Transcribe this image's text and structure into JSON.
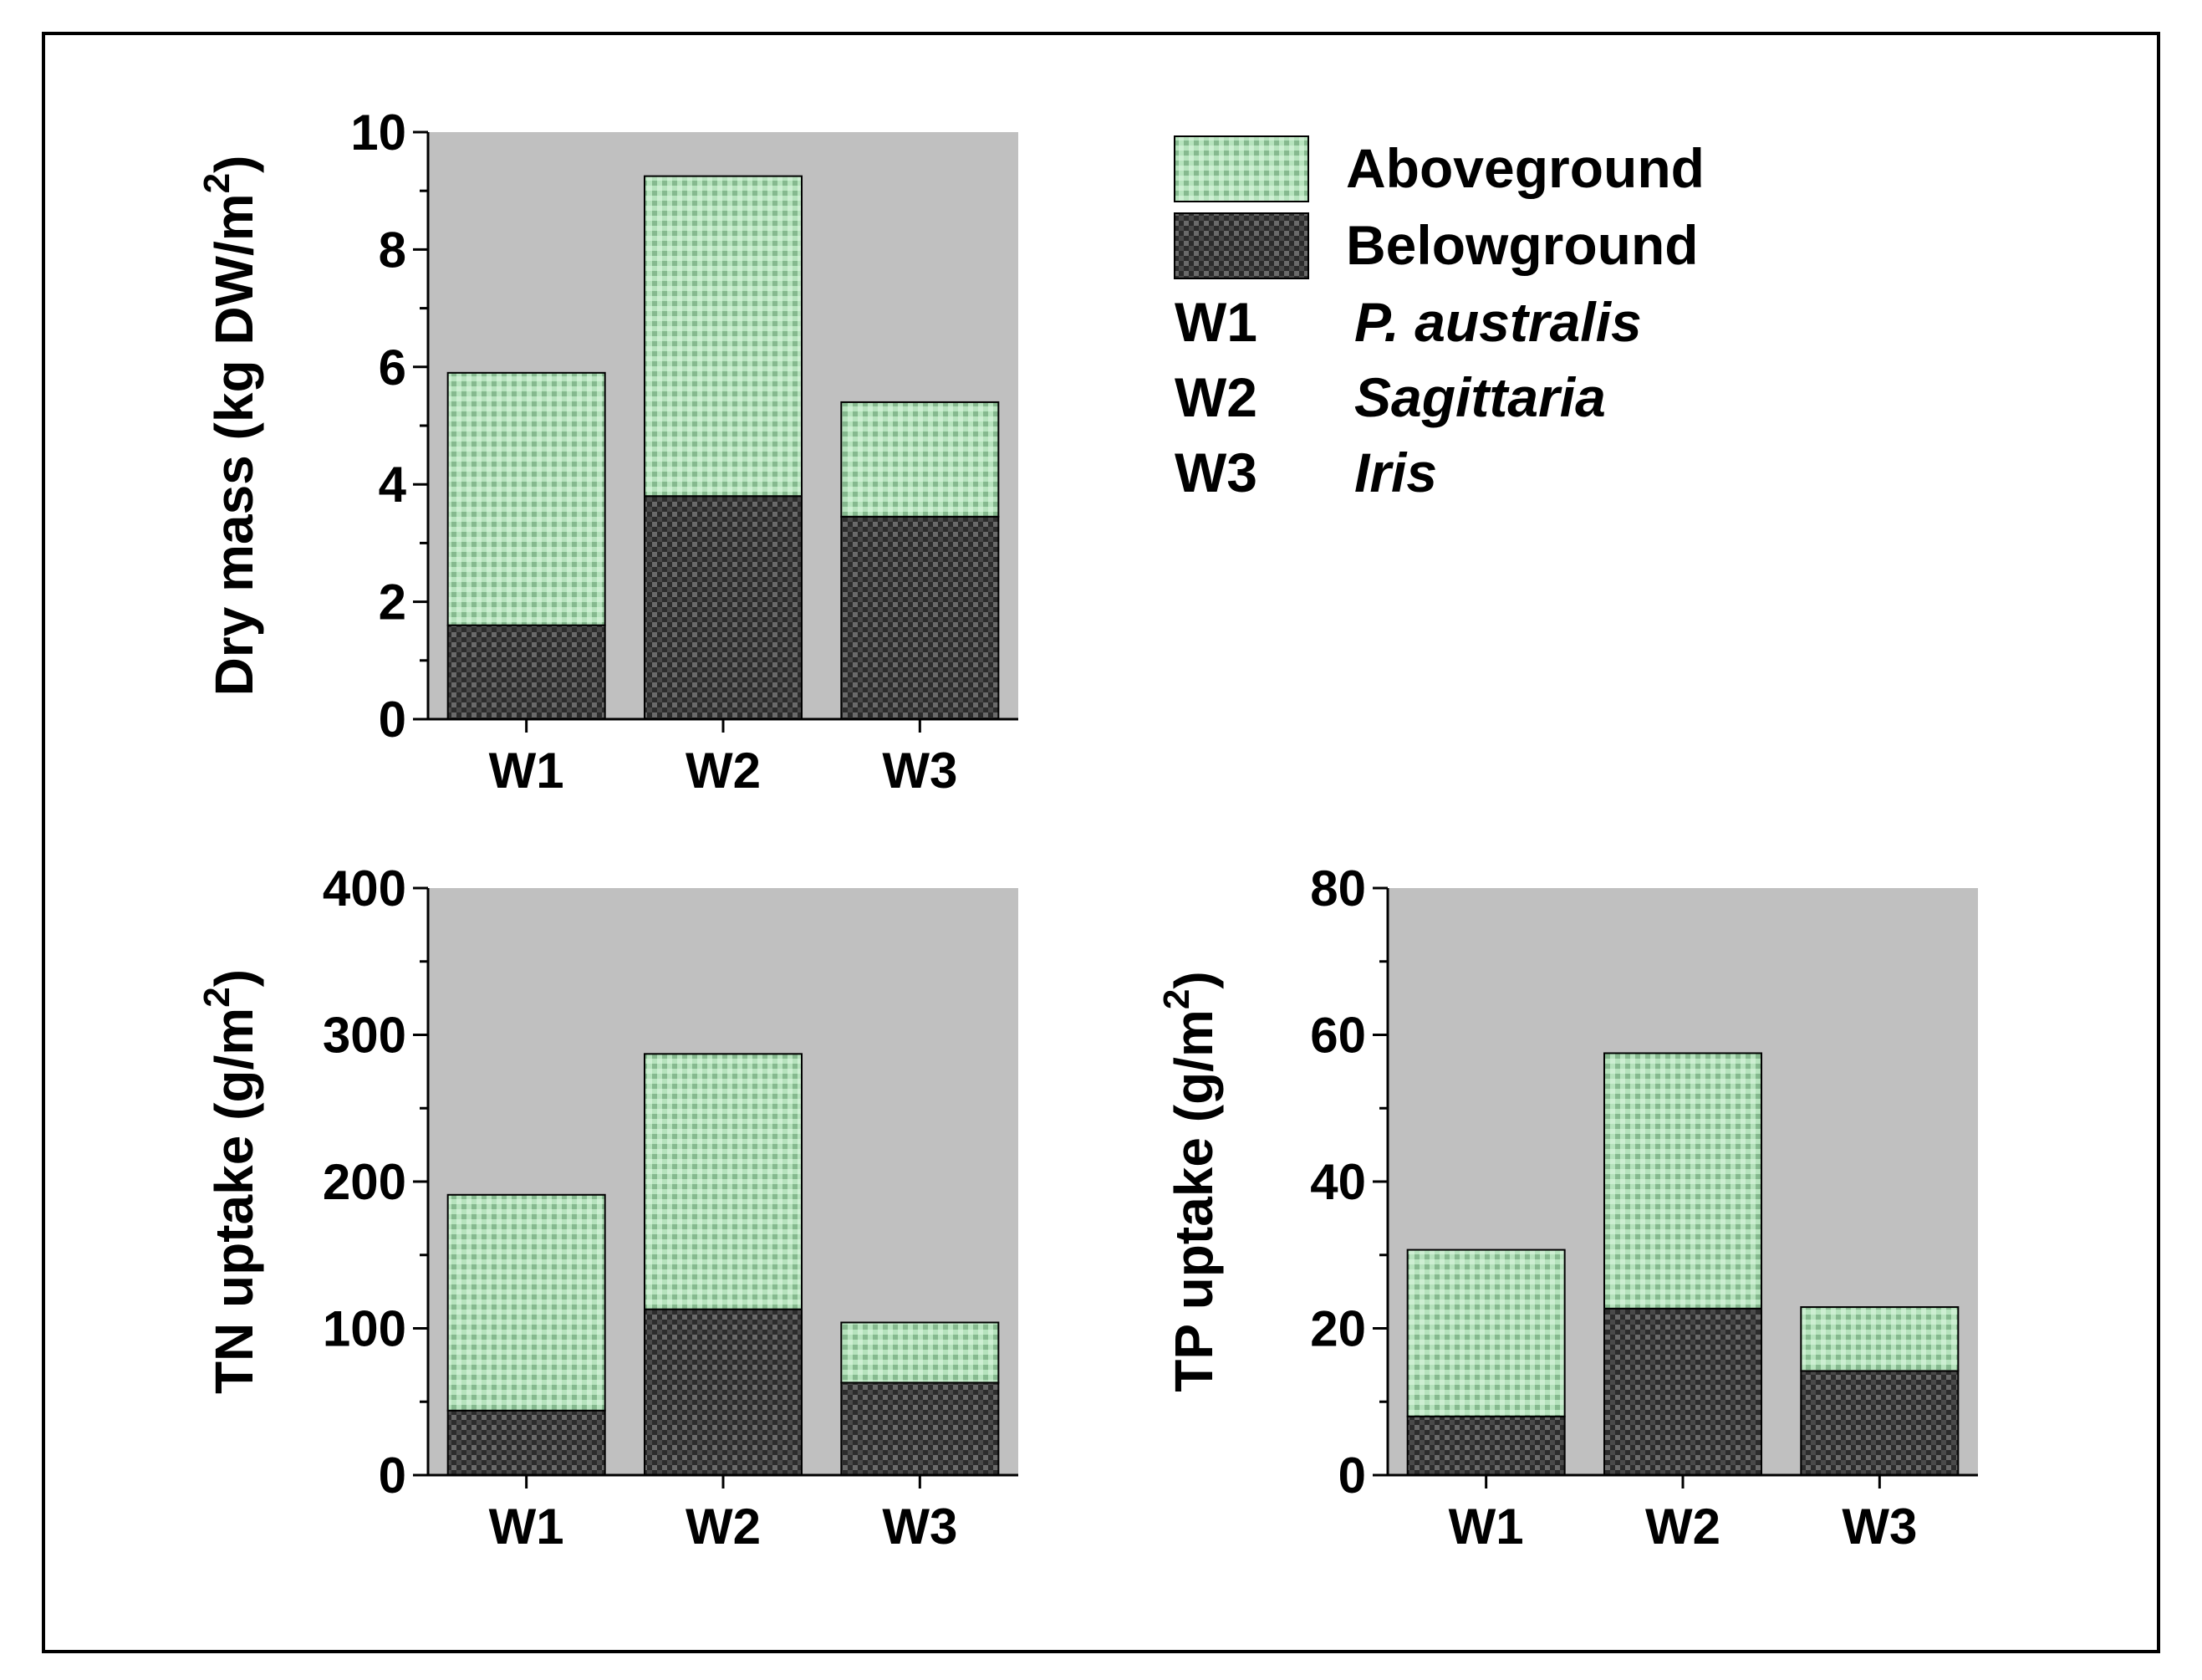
{
  "colors": {
    "plot_background": "#c0c0c0",
    "aboveground": "#9fd3a8",
    "belowground": "#3a3a3a",
    "frame": "#000000"
  },
  "legend": {
    "series": [
      {
        "key": "above",
        "label": "Aboveground"
      },
      {
        "key": "below",
        "label": "Belowground"
      }
    ],
    "wetlands": [
      {
        "code": "W1",
        "species": "P. australis"
      },
      {
        "code": "W2",
        "species": "Sagittaria"
      },
      {
        "code": "W3",
        "species": "Iris"
      }
    ]
  },
  "chart_data": [
    {
      "id": "dry-mass",
      "type": "bar",
      "stacked": true,
      "categories": [
        "W1",
        "W2",
        "W3"
      ],
      "series": [
        {
          "name": "Belowground",
          "key": "below",
          "values": [
            1.6,
            3.8,
            3.45
          ]
        },
        {
          "name": "Aboveground",
          "key": "above",
          "values": [
            4.3,
            5.45,
            1.95
          ]
        }
      ],
      "ylabel": "Dry mass (kg DW/m",
      "ylabel_sup": "2",
      "ylabel_close": ")",
      "ylim": [
        0,
        10
      ],
      "yticks": [
        0,
        2,
        4,
        6,
        8,
        10
      ],
      "ytick_labels": [
        "0",
        "2",
        "4",
        "6",
        "8",
        "10"
      ],
      "minor_step": 1
    },
    {
      "id": "tn-uptake",
      "type": "bar",
      "stacked": true,
      "categories": [
        "W1",
        "W2",
        "W3"
      ],
      "series": [
        {
          "name": "Belowground",
          "key": "below",
          "values": [
            44,
            113,
            63
          ]
        },
        {
          "name": "Aboveground",
          "key": "above",
          "values": [
            147,
            174,
            41
          ]
        }
      ],
      "ylabel": "TN uptake (g/m",
      "ylabel_sup": "2",
      "ylabel_close": ")",
      "ylim": [
        0,
        400
      ],
      "yticks": [
        0,
        100,
        200,
        300,
        400
      ],
      "ytick_labels": [
        "0",
        "100",
        "200",
        "300",
        "400"
      ],
      "minor_step": 50
    },
    {
      "id": "tp-uptake",
      "type": "bar",
      "stacked": true,
      "categories": [
        "W1",
        "W2",
        "W3"
      ],
      "series": [
        {
          "name": "Belowground",
          "key": "below",
          "values": [
            8,
            22.7,
            14.2
          ]
        },
        {
          "name": "Aboveground",
          "key": "above",
          "values": [
            22.7,
            34.8,
            8.7
          ]
        }
      ],
      "ylabel": "TP uptake (g/m",
      "ylabel_sup": "2",
      "ylabel_close": ")",
      "ylim": [
        0,
        80
      ],
      "yticks": [
        0,
        20,
        40,
        60,
        80
      ],
      "ytick_labels": [
        "0",
        "20",
        "40",
        "60",
        "80"
      ],
      "minor_step": 10
    }
  ]
}
